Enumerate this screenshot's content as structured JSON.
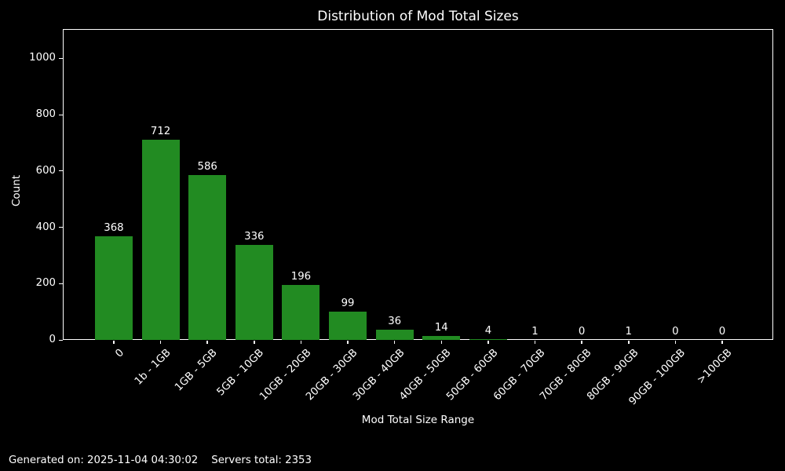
{
  "chart_data": {
    "type": "bar",
    "title": "Distribution of Mod Total Sizes",
    "categories": [
      "0",
      "1b - 1GB",
      "1GB - 5GB",
      "5GB - 10GB",
      "10GB - 20GB",
      "20GB - 30GB",
      "30GB - 40GB",
      "40GB - 50GB",
      "50GB - 60GB",
      "60GB - 70GB",
      "70GB - 80GB",
      "80GB - 90GB",
      "90GB - 100GB",
      ">100GB"
    ],
    "values": [
      368,
      712,
      586,
      336,
      196,
      99,
      36,
      14,
      4,
      1,
      0,
      1,
      0,
      0
    ],
    "xlabel": "Mod Total Size Range",
    "ylabel": "Count",
    "yticks": [
      0,
      200,
      400,
      600,
      800,
      1000
    ],
    "ylim": [
      0,
      1104
    ],
    "grid": false,
    "legend_position": "none",
    "bar_labels_shown": true,
    "bar_color": "#228B22",
    "background_color": "#000000",
    "text_color": "#ffffff",
    "axis_color": "#ffffff"
  },
  "footer": {
    "generated": "Generated on: 2025-11-04 04:30:02",
    "servers": "Servers total: 2353"
  }
}
